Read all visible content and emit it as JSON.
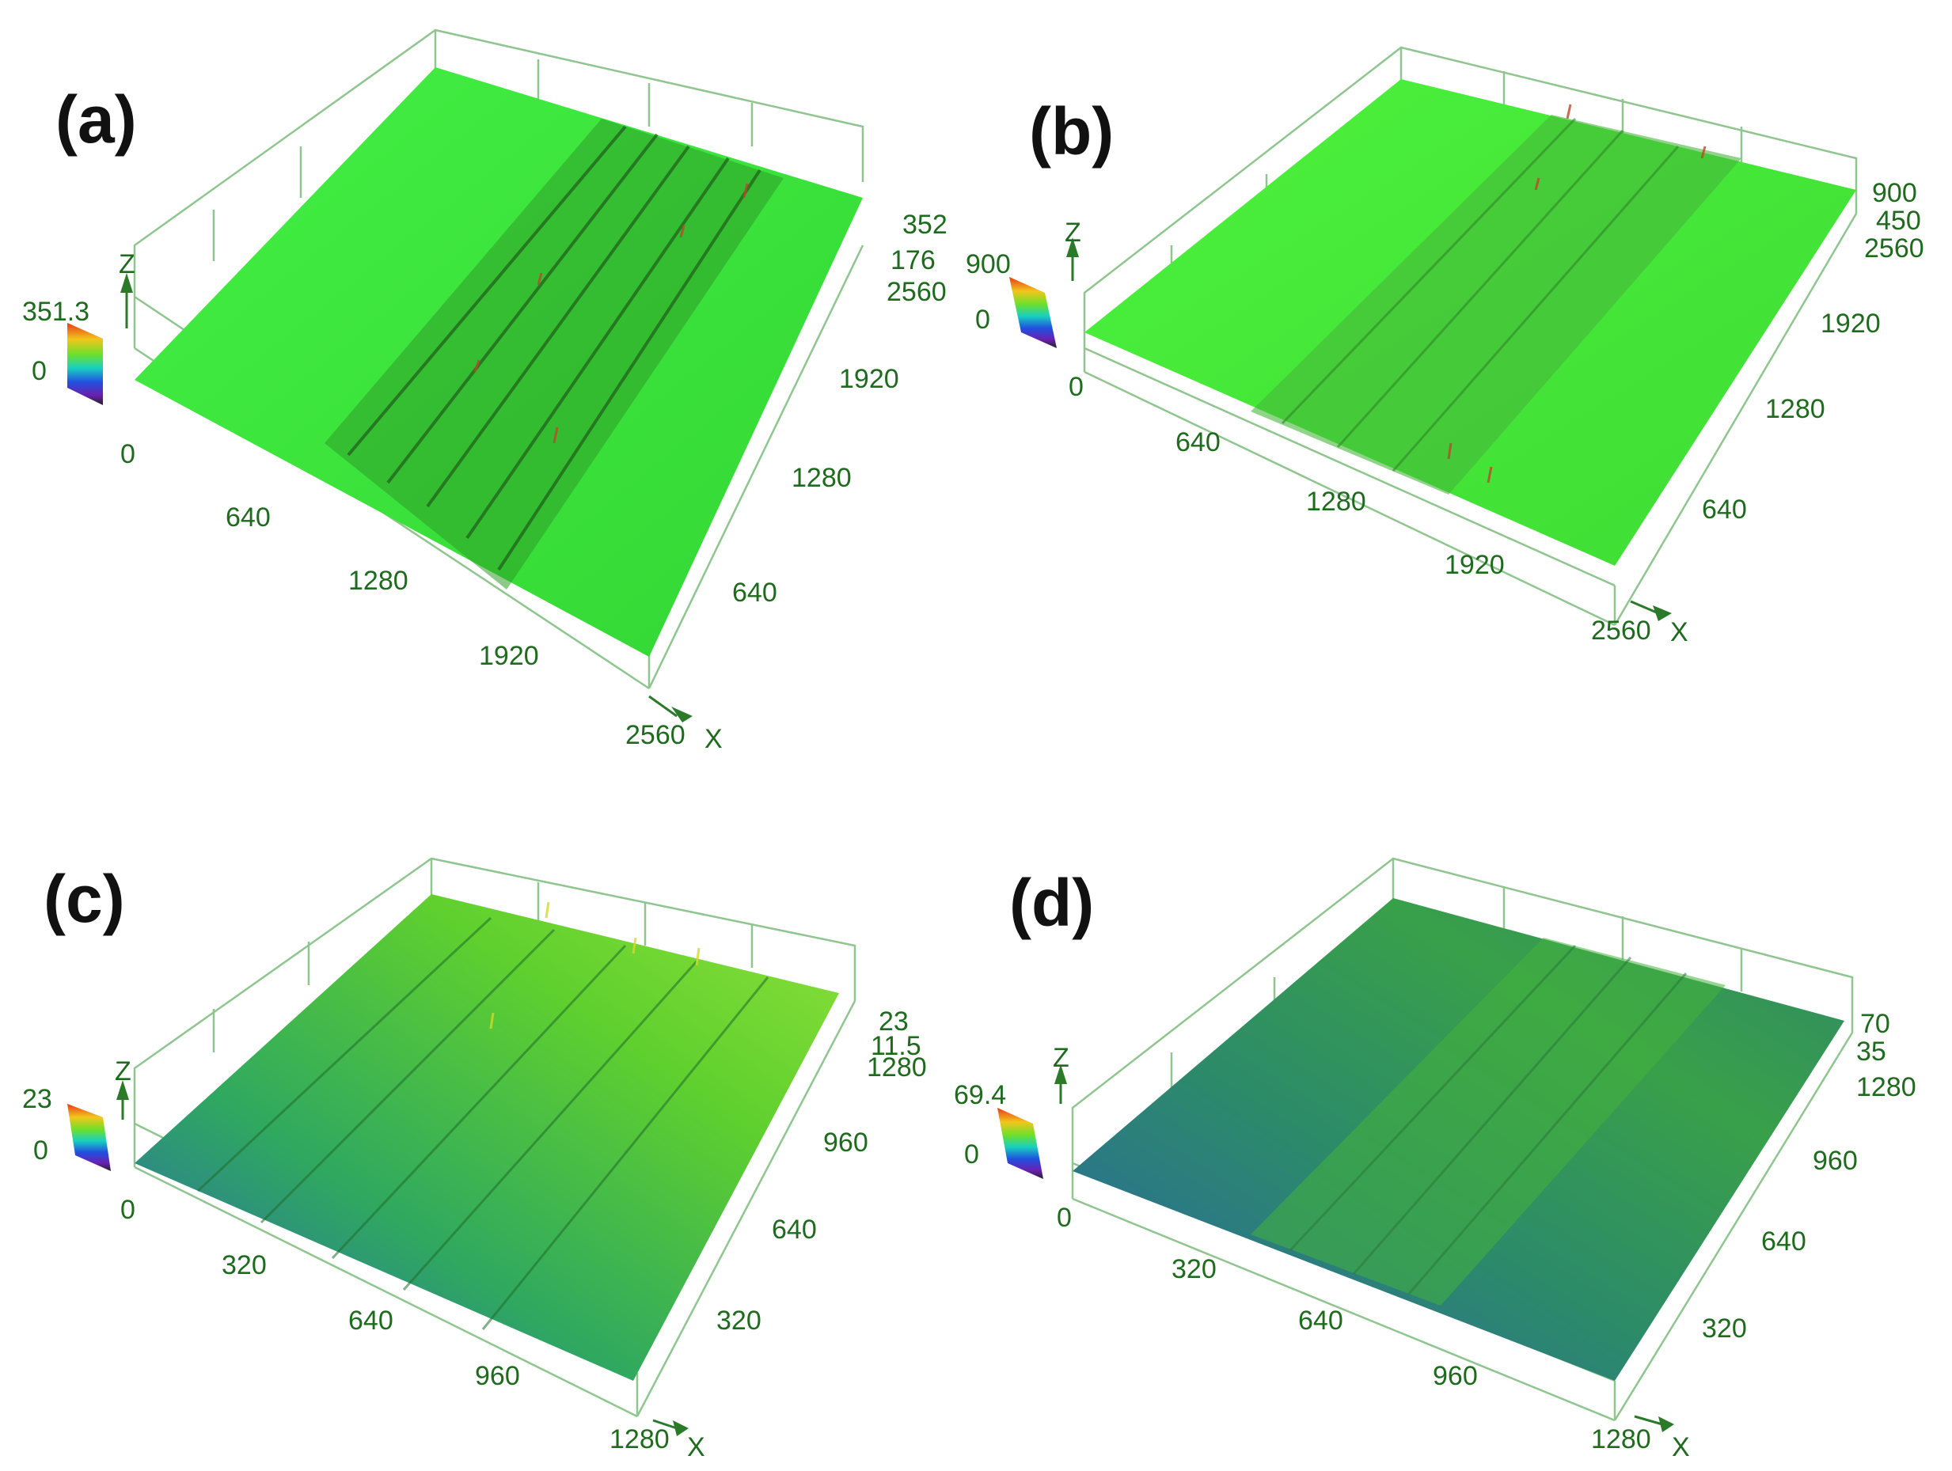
{
  "panels": [
    {
      "label": "(a)",
      "surface": "wide",
      "x_ticks": [
        "0",
        "640",
        "1280",
        "1920",
        "2560"
      ],
      "y_ticks": [
        "640",
        "1280",
        "1920",
        "2560"
      ],
      "z_ticks": [
        "352",
        "176"
      ],
      "x_axis_name": "X",
      "z_axis_name": "Z",
      "colorbar": {
        "max": "351.3",
        "min": "0"
      }
    },
    {
      "label": "(b)",
      "surface": "narrow",
      "x_ticks": [
        "0",
        "640",
        "1280",
        "1920",
        "2560"
      ],
      "y_ticks": [
        "640",
        "1280",
        "1920",
        "2560"
      ],
      "z_ticks": [
        "900",
        "450"
      ],
      "x_axis_name": "X",
      "z_axis_name": "Z",
      "colorbar": {
        "max": "900",
        "min": "0"
      }
    },
    {
      "label": "(c)",
      "surface": "rough",
      "x_ticks": [
        "0",
        "320",
        "640",
        "960",
        "1280"
      ],
      "y_ticks": [
        "320",
        "640",
        "960",
        "1280"
      ],
      "z_ticks": [
        "23",
        "11.5"
      ],
      "x_axis_name": "X",
      "z_axis_name": "Z",
      "colorbar": {
        "max": "23",
        "min": "0"
      }
    },
    {
      "label": "(d)",
      "surface": "smooth",
      "x_ticks": [
        "0",
        "320",
        "640",
        "960",
        "1280"
      ],
      "y_ticks": [
        "320",
        "640",
        "960",
        "1280"
      ],
      "z_ticks": [
        "70",
        "35"
      ],
      "x_axis_name": "X",
      "z_axis_name": "Z",
      "colorbar": {
        "max": "69.4",
        "min": "0"
      }
    }
  ],
  "colors": {
    "axis_line": "#8fc58f",
    "tick_text": "#1e6b1e",
    "surface_bright": "#3df23d",
    "surface_mid": "#2fb84a",
    "surface_blue": "#2a6fb0",
    "track_dark": "#2b6e1e",
    "peak_red": "#c0462a"
  }
}
